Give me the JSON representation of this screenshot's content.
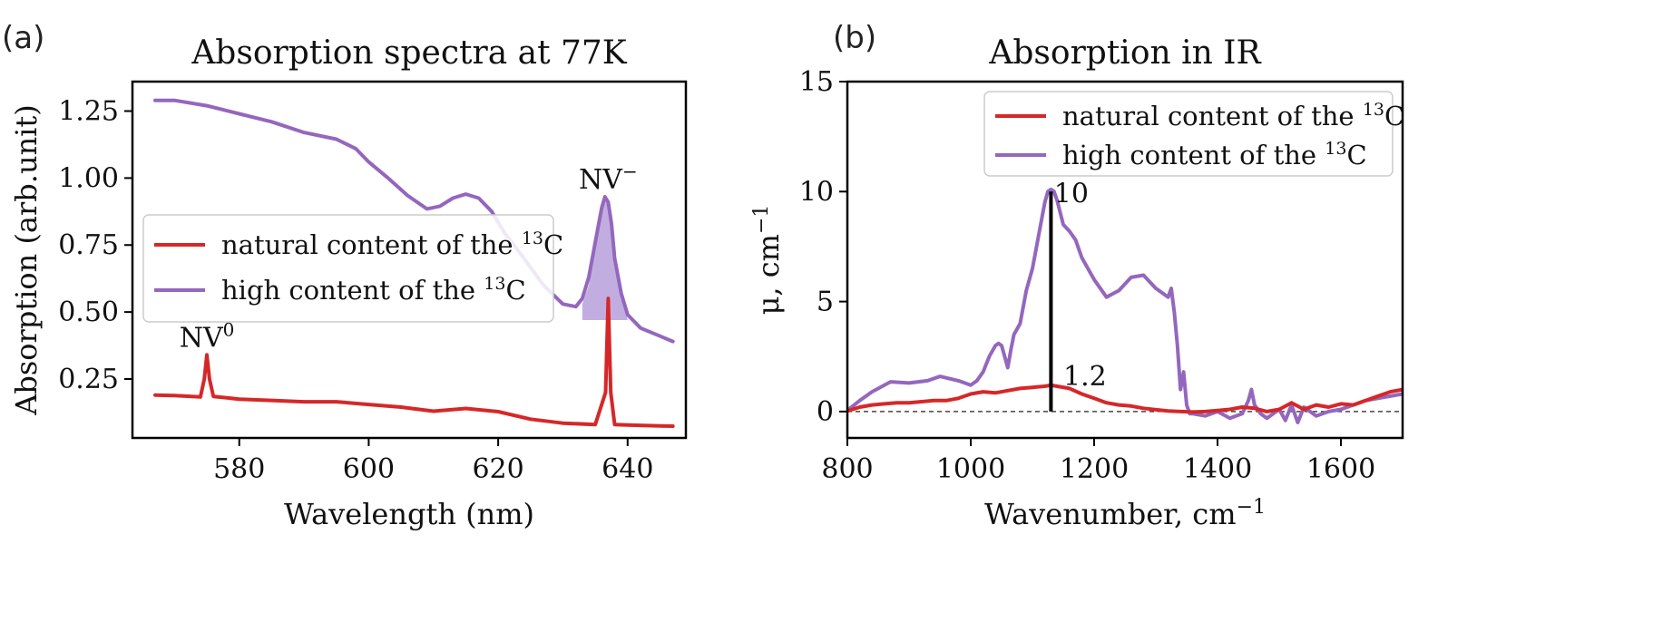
{
  "panels": {
    "a": "(a)",
    "b": "(b)"
  },
  "colors": {
    "natural": "#d62728",
    "high": "#9467bd",
    "fill": "#b79fdc"
  },
  "chart_data": [
    {
      "type": "line",
      "title": "Absorption spectra at 77K",
      "xlabel": "Wavelength (nm)",
      "ylabel": "Absorption (arb.unit)",
      "xlim": [
        563.5,
        649
      ],
      "ylim": [
        0.03,
        1.36
      ],
      "xticks": [
        580,
        600,
        620,
        640
      ],
      "yticks": [
        0.25,
        0.5,
        0.75,
        1.0,
        1.25
      ],
      "xtick_labels": [
        "580",
        "600",
        "620",
        "640"
      ],
      "ytick_labels": [
        "0.25",
        "0.50",
        "0.75",
        "1.00",
        "1.25"
      ],
      "legend": {
        "position": "center-left",
        "entries": [
          {
            "prefix": "natural content of the ",
            "sup": "13",
            "suffix": "C",
            "color_key": "natural"
          },
          {
            "prefix": "high content of the ",
            "sup": "13",
            "suffix": "C",
            "color_key": "high"
          }
        ]
      },
      "annotations": [
        {
          "base": "NV",
          "sup": "0",
          "x": 575,
          "y": 0.37
        },
        {
          "base": "NV",
          "sup": "−",
          "x": 637,
          "y": 0.96
        }
      ],
      "series": [
        {
          "name": "high content of the 13C",
          "color_key": "high",
          "x": [
            567,
            570,
            575,
            580,
            585,
            590,
            595,
            598,
            600,
            603,
            606,
            609,
            611,
            613,
            615,
            617,
            619,
            621,
            624,
            627,
            630,
            632,
            633,
            634,
            635,
            636,
            636.5,
            637,
            637.5,
            638,
            639,
            640,
            642,
            645,
            647
          ],
          "y": [
            1.29,
            1.29,
            1.27,
            1.24,
            1.21,
            1.17,
            1.145,
            1.11,
            1.06,
            1.0,
            0.935,
            0.885,
            0.895,
            0.925,
            0.94,
            0.925,
            0.875,
            0.795,
            0.7,
            0.6,
            0.53,
            0.52,
            0.55,
            0.63,
            0.76,
            0.89,
            0.93,
            0.91,
            0.83,
            0.7,
            0.57,
            0.49,
            0.44,
            0.41,
            0.39
          ]
        },
        {
          "name": "natural content of the 13C",
          "color_key": "natural",
          "x": [
            567,
            570,
            574,
            574.6,
            575,
            575.4,
            576,
            580,
            585,
            590,
            595,
            600,
            605,
            610,
            615,
            620,
            625,
            630,
            635,
            636.6,
            637,
            637.4,
            638,
            640,
            645,
            647
          ],
          "y": [
            0.19,
            0.188,
            0.183,
            0.25,
            0.34,
            0.25,
            0.185,
            0.175,
            0.17,
            0.165,
            0.165,
            0.155,
            0.145,
            0.13,
            0.14,
            0.128,
            0.1,
            0.085,
            0.08,
            0.2,
            0.55,
            0.2,
            0.08,
            0.078,
            0.075,
            0.074
          ]
        }
      ],
      "shaded_peak": {
        "color_key": "fill",
        "x": [
          633,
          634,
          635,
          636,
          636.5,
          637,
          637.5,
          638,
          639,
          640
        ],
        "upper": [
          0.53,
          0.6,
          0.74,
          0.88,
          0.93,
          0.91,
          0.83,
          0.7,
          0.58,
          0.47
        ],
        "baseline": 0.47
      }
    },
    {
      "type": "line",
      "title": "Absorption in IR",
      "xlabel_prefix": "Wavenumber, cm",
      "xlabel_sup": "−1",
      "ylabel_prefix": "μ, cm",
      "ylabel_sup": "−1",
      "xlim": [
        800,
        1700
      ],
      "ylim": [
        -1.2,
        15
      ],
      "xticks": [
        800,
        1000,
        1200,
        1400,
        1600
      ],
      "yticks": [
        0,
        5,
        10,
        15
      ],
      "xtick_labels": [
        "800",
        "1000",
        "1200",
        "1400",
        "1600"
      ],
      "ytick_labels": [
        "0",
        "5",
        "10",
        "15"
      ],
      "legend": {
        "position": "top-right",
        "entries": [
          {
            "prefix": "natural content of the ",
            "sup": "13",
            "suffix": "C",
            "color_key": "natural"
          },
          {
            "prefix": "high content of the ",
            "sup": "13",
            "suffix": "C",
            "color_key": "high"
          }
        ]
      },
      "zero_line": {
        "y": 0,
        "dashed": true
      },
      "marker_line": {
        "x": 1130,
        "y_from": 0,
        "y_to": 10
      },
      "annotations": [
        {
          "text": "10",
          "x": 1135,
          "y": 9.5
        },
        {
          "text": "1.2",
          "x": 1150,
          "y": 1.2
        }
      ],
      "series": [
        {
          "name": "high content of the 13C",
          "color_key": "high",
          "x": [
            800,
            820,
            840,
            860,
            870,
            900,
            930,
            950,
            980,
            1000,
            1010,
            1020,
            1030,
            1040,
            1045,
            1050,
            1060,
            1065,
            1070,
            1080,
            1090,
            1095,
            1100,
            1110,
            1120,
            1125,
            1130,
            1135,
            1140,
            1150,
            1160,
            1170,
            1180,
            1200,
            1220,
            1240,
            1260,
            1280,
            1300,
            1320,
            1325,
            1330,
            1335,
            1340,
            1345,
            1350,
            1355,
            1360,
            1380,
            1400,
            1420,
            1440,
            1450,
            1455,
            1460,
            1470,
            1480,
            1500,
            1510,
            1520,
            1530,
            1540,
            1560,
            1580,
            1600,
            1620,
            1640,
            1660,
            1680,
            1700
          ],
          "y": [
            0.05,
            0.5,
            0.9,
            1.2,
            1.35,
            1.3,
            1.4,
            1.6,
            1.4,
            1.2,
            1.4,
            1.8,
            2.5,
            3.0,
            3.1,
            3.0,
            2.0,
            2.8,
            3.5,
            4.0,
            5.5,
            6.0,
            6.5,
            8.0,
            9.5,
            10.0,
            10.1,
            10.0,
            9.6,
            8.5,
            8.2,
            7.8,
            7.0,
            6.0,
            5.2,
            5.5,
            6.1,
            6.2,
            5.6,
            5.2,
            5.6,
            4.5,
            3.0,
            1.0,
            1.8,
            0.3,
            -0.1,
            -0.1,
            -0.2,
            0.0,
            -0.3,
            -0.1,
            0.5,
            1.0,
            0.3,
            -0.1,
            -0.3,
            0.1,
            -0.4,
            0.3,
            -0.5,
            0.2,
            -0.2,
            0.0,
            0.1,
            0.3,
            0.5,
            0.6,
            0.7,
            0.8
          ]
        },
        {
          "name": "natural content of the 13C",
          "color_key": "natural",
          "x": [
            800,
            820,
            840,
            860,
            880,
            900,
            920,
            940,
            960,
            980,
            1000,
            1020,
            1040,
            1060,
            1080,
            1100,
            1120,
            1130,
            1140,
            1160,
            1180,
            1200,
            1220,
            1240,
            1260,
            1280,
            1300,
            1320,
            1340,
            1360,
            1380,
            1400,
            1420,
            1440,
            1460,
            1480,
            1500,
            1520,
            1540,
            1560,
            1580,
            1600,
            1620,
            1640,
            1660,
            1680,
            1700
          ],
          "y": [
            0.02,
            0.2,
            0.3,
            0.35,
            0.4,
            0.4,
            0.45,
            0.5,
            0.5,
            0.6,
            0.8,
            0.9,
            0.85,
            0.95,
            1.05,
            1.1,
            1.15,
            1.2,
            1.15,
            1.05,
            0.8,
            0.6,
            0.4,
            0.3,
            0.25,
            0.15,
            0.08,
            0.03,
            0.0,
            -0.02,
            0.0,
            0.05,
            0.1,
            0.2,
            0.15,
            0.0,
            0.1,
            0.4,
            0.1,
            0.3,
            0.2,
            0.35,
            0.3,
            0.5,
            0.7,
            0.9,
            1.0
          ]
        }
      ]
    }
  ]
}
